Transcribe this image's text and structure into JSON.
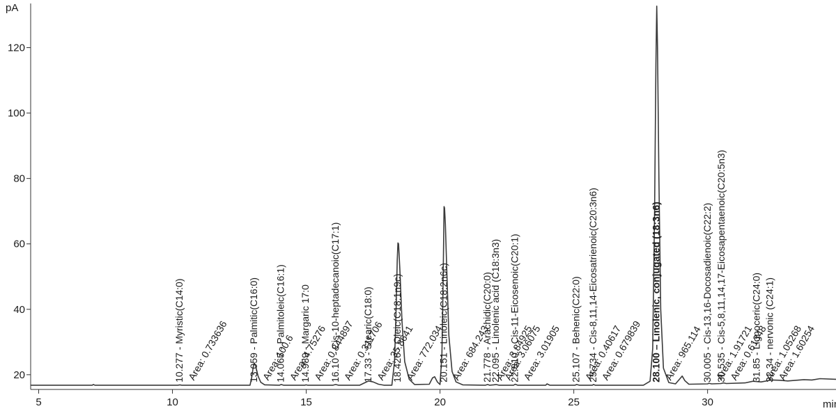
{
  "chart_data": {
    "type": "line",
    "title": "",
    "xlabel": "",
    "ylabel": "",
    "y_unit": "pA",
    "x_unit": "min",
    "xlim": [
      4.7,
      34.8
    ],
    "ylim": [
      15.5,
      133.5
    ],
    "x_ticks": [
      5,
      10,
      15,
      20,
      25,
      30
    ],
    "y_ticks": [
      20,
      40,
      60,
      80,
      100,
      120
    ],
    "grid": false,
    "line_color": "#3a3a3a",
    "baseline": 16.8,
    "trace": [
      [
        4.7,
        16.8
      ],
      [
        7.0,
        16.8
      ],
      [
        7.05,
        17.0
      ],
      [
        7.1,
        16.8
      ],
      [
        10.2,
        16.8
      ],
      [
        10.277,
        16.9
      ],
      [
        10.35,
        16.8
      ],
      [
        12.9,
        16.8
      ],
      [
        12.97,
        19.5
      ],
      [
        13.02,
        22.4
      ],
      [
        13.059,
        23.6
      ],
      [
        13.11,
        22.6
      ],
      [
        13.2,
        19.6
      ],
      [
        13.3,
        17.7
      ],
      [
        13.45,
        16.9
      ],
      [
        14.0,
        16.8
      ],
      [
        14.065,
        17.0
      ],
      [
        14.15,
        16.8
      ],
      [
        14.95,
        16.8
      ],
      [
        14.989,
        16.9
      ],
      [
        15.05,
        16.8
      ],
      [
        16.0,
        16.8
      ],
      [
        16.1,
        17.0
      ],
      [
        16.2,
        16.8
      ],
      [
        17.0,
        16.8
      ],
      [
        17.2,
        17.6
      ],
      [
        17.33,
        18.1
      ],
      [
        17.5,
        17.8
      ],
      [
        17.7,
        17.1
      ],
      [
        17.9,
        16.8
      ],
      [
        18.2,
        16.8
      ],
      [
        18.3,
        24.0
      ],
      [
        18.36,
        40.0
      ],
      [
        18.4,
        55.0
      ],
      [
        18.426,
        60.3
      ],
      [
        18.45,
        60.0
      ],
      [
        18.5,
        52.0
      ],
      [
        18.58,
        36.0
      ],
      [
        18.68,
        24.0
      ],
      [
        18.85,
        18.6
      ],
      [
        19.05,
        17.0
      ],
      [
        19.6,
        17.1
      ],
      [
        19.72,
        19.0
      ],
      [
        19.8,
        19.4
      ],
      [
        19.9,
        17.8
      ],
      [
        20.0,
        17.0
      ],
      [
        20.07,
        26.0
      ],
      [
        20.11,
        45.0
      ],
      [
        20.14,
        64.0
      ],
      [
        20.151,
        71.4
      ],
      [
        20.17,
        71.0
      ],
      [
        20.2,
        66.0
      ],
      [
        20.26,
        50.0
      ],
      [
        20.33,
        32.0
      ],
      [
        20.45,
        21.0
      ],
      [
        20.6,
        17.8
      ],
      [
        20.85,
        16.9
      ],
      [
        21.7,
        16.8
      ],
      [
        21.778,
        17.0
      ],
      [
        21.85,
        16.8
      ],
      [
        22.0,
        16.9
      ],
      [
        22.095,
        17.0
      ],
      [
        22.2,
        16.8
      ],
      [
        22.75,
        16.8
      ],
      [
        22.81,
        17.1
      ],
      [
        22.9,
        16.8
      ],
      [
        23.95,
        16.8
      ],
      [
        24.0,
        17.2
      ],
      [
        24.1,
        16.8
      ],
      [
        25.05,
        16.8
      ],
      [
        25.107,
        17.0
      ],
      [
        25.2,
        16.8
      ],
      [
        25.7,
        16.8
      ],
      [
        25.734,
        17.0
      ],
      [
        25.8,
        16.8
      ],
      [
        27.6,
        16.8
      ],
      [
        27.85,
        18.0
      ],
      [
        27.95,
        28.0
      ],
      [
        28.02,
        70.0
      ],
      [
        28.07,
        115.0
      ],
      [
        28.1,
        132.7
      ],
      [
        28.13,
        120.0
      ],
      [
        28.18,
        80.0
      ],
      [
        28.25,
        40.0
      ],
      [
        28.35,
        22.0
      ],
      [
        28.55,
        17.6
      ],
      [
        28.8,
        17.2
      ],
      [
        28.95,
        18.6
      ],
      [
        29.05,
        19.6
      ],
      [
        29.15,
        18.2
      ],
      [
        29.3,
        17.1
      ],
      [
        30.0,
        17.2
      ],
      [
        30.05,
        17.4
      ],
      [
        30.15,
        17.2
      ],
      [
        30.5,
        17.3
      ],
      [
        30.6,
        17.5
      ],
      [
        30.7,
        17.3
      ],
      [
        31.4,
        17.5
      ],
      [
        31.7,
        18.0
      ],
      [
        32.0,
        17.8
      ],
      [
        32.4,
        18.4
      ],
      [
        32.7,
        18.3
      ],
      [
        33.0,
        18.1
      ],
      [
        33.6,
        18.5
      ],
      [
        33.9,
        18.4
      ],
      [
        34.2,
        18.8
      ],
      [
        34.8,
        18.6
      ]
    ],
    "annotations": [
      {
        "rt": 10.277,
        "label": "10.277 -  Myristic(C14:0)",
        "area": "Area: 0.733636",
        "bold": false
      },
      {
        "rt": 13.059,
        "label": "13.059 -  Palmitic(C16:0)",
        "area": "Area: 100.6",
        "bold": false
      },
      {
        "rt": 14.065,
        "label": "14.065 -  Palmitoleic(C16:1)",
        "area": "Area: 4.75276",
        "bold": false
      },
      {
        "rt": 14.989,
        "label": "14.989 -  Margaric 17:0",
        "area": "Area: 0.844897",
        "bold": false
      },
      {
        "rt": 16.1,
        "label": "16.10 -  Cis-10-heptadecanoic(C17:1)",
        "area": "Area: 0.311706",
        "bold": false
      },
      {
        "rt": 17.33,
        "label": "17.33 -  Stearic(C18:0)",
        "area": "Area: 35.8641",
        "bold": false
      },
      {
        "rt": 18.426,
        "label": "18.426 -  Oleic(C18:1n9c)",
        "area": "Area: 772.034",
        "bold": false
      },
      {
        "rt": 20.151,
        "label": "20.151 -  Linoleic(C18:2n6c)",
        "area": "Area: 684.243",
        "bold": false
      },
      {
        "rt": 21.778,
        "label": "21.778 -  Arachidic(C20:0)",
        "area": "Area: 3.84925",
        "bold": false
      },
      {
        "rt": 22.095,
        "label": "22.095 -  Linolenic acid (C18:3n3)",
        "area": "Area: 3.06075",
        "bold": false
      },
      {
        "rt": 22.81,
        "label": "22.810 -  Cis-11-Eicosenoic(C20:1)",
        "area": "Area: 3.01905",
        "bold": false
      },
      {
        "rt": 25.107,
        "label": "25.107 -  Behenic(C22:0)",
        "area": "Area: 0.40617",
        "bold": false
      },
      {
        "rt": 25.734,
        "label": "25.734 -  Cis-8,11,14-Eicosatrienoic(C20:3n6)",
        "area": "Area: 0.679839",
        "bold": false
      },
      {
        "rt": 28.1,
        "label": "28.100 – Linolenic, conjugated (18:3n6)",
        "area": "Area: 965.114",
        "bold": true
      },
      {
        "rt": 30.005,
        "label": "30.005 -  Cis-13,16-Docosadienoic(C22:2)",
        "area": "Area: 1.91721",
        "bold": false
      },
      {
        "rt": 30.535,
        "label": "30.535 -  Cis-5,8,11,14,17-Eicosapentaenoic(C20:5n3)",
        "area": "Area: 0.61348",
        "bold": false
      },
      {
        "rt": 31.85,
        "label": "31.85 -  Lignoceric(C24:0)",
        "area": "Area: 1.05268",
        "bold": false
      },
      {
        "rt": 32.34,
        "label": "32.34 -  nervonic (C24:1)",
        "area": "Area: 1.60254",
        "bold": false
      }
    ]
  }
}
